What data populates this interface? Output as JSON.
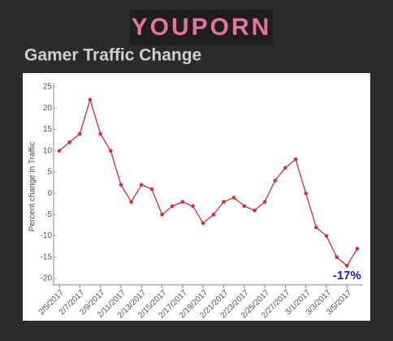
{
  "logo": "YOUPORN",
  "chart_data": {
    "type": "line",
    "title": "Gamer Traffic Change",
    "y_label": "Percent change in Traffic",
    "categories": [
      "2/5/2017",
      null,
      "2/7/2017",
      null,
      "2/9/2017",
      null,
      "2/11/2017",
      null,
      "2/13/2017",
      null,
      "2/15/2017",
      null,
      "2/17/2017",
      null,
      "2/19/2017",
      null,
      "2/21/2017",
      null,
      "2/23/2017",
      null,
      "2/25/2017",
      null,
      "2/27/2017",
      null,
      "3/1/2017",
      null,
      "3/3/2017",
      null,
      "3/5/2017",
      null
    ],
    "values": [
      10,
      12,
      14,
      22,
      14,
      10,
      2,
      -2,
      2,
      1,
      -5,
      -3,
      -2,
      -3,
      -7,
      -5,
      -2,
      -1,
      -3,
      -4,
      -2,
      3,
      6,
      8,
      0,
      -8,
      -10,
      -15,
      -17,
      -13
    ],
    "color": "#d0313a",
    "ylim": [
      -21.5,
      25
    ],
    "yticks": [
      25,
      20,
      15,
      10,
      5,
      0,
      -5,
      -10,
      -15,
      -20
    ],
    "annotation": "-17%"
  }
}
